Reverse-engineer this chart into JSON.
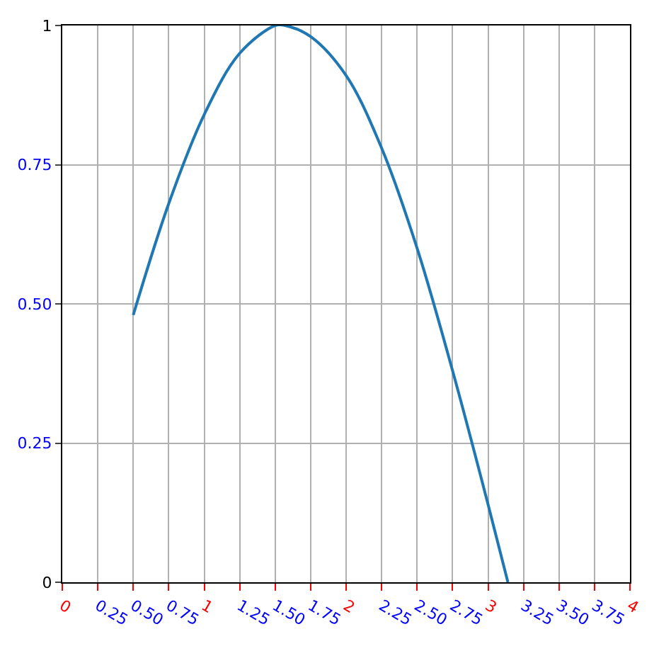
{
  "chart_data": {
    "type": "line",
    "x": [
      0.5,
      0.75,
      1.0,
      1.25,
      1.5,
      1.57,
      1.75,
      2.0,
      2.25,
      2.5,
      2.75,
      3.0,
      3.14
    ],
    "values": [
      0.48,
      0.68,
      0.84,
      0.95,
      1.0,
      1.0,
      0.98,
      0.91,
      0.78,
      0.6,
      0.38,
      0.14,
      0.0
    ],
    "color": "#1f77b4",
    "xlim": [
      0,
      4
    ],
    "xticks": [
      0,
      {
        "value": 0.25,
        "label": "0.25"
      },
      {
        "value": 0.5,
        "label": "0.50"
      },
      {
        "value": 0.75,
        "label": "0.75"
      },
      1,
      {
        "value": 1.25,
        "label": "1.25"
      },
      {
        "value": 1.5,
        "label": "1.50"
      },
      {
        "value": 1.75,
        "label": "1.75"
      },
      2,
      {
        "value": 2.25,
        "label": "2.25"
      },
      {
        "value": 2.5,
        "label": "2.50"
      },
      {
        "value": 2.75,
        "label": "2.75"
      },
      3,
      {
        "value": 3.25,
        "label": "3.25"
      },
      {
        "value": 3.5,
        "label": "3.50"
      },
      {
        "value": 3.75,
        "label": "3.75"
      },
      4
    ],
    "ylim": [
      0,
      1
    ],
    "yticks": [
      0,
      {
        "value": 0.25,
        "label": "0.25"
      },
      {
        "value": 0.5,
        "label": "0.50"
      },
      {
        "value": 0.75,
        "label": "0.75"
      },
      1
    ],
    "grid": true,
    "marker": "none",
    "line_style": "solid"
  }
}
